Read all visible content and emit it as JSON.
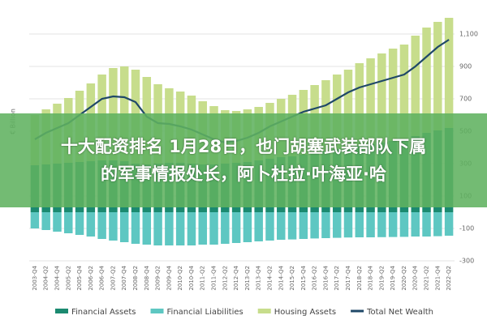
{
  "chart_data": {
    "type": "bar",
    "stacked": true,
    "ylabel": "€ Billion",
    "categories": [
      "2003-Q4",
      "2004-Q2",
      "2004-Q4",
      "2005-Q2",
      "2005-Q4",
      "2006-Q2",
      "2006-Q4",
      "2007-Q2",
      "2007-Q4",
      "2008-Q2",
      "2008-Q4",
      "2009-Q2",
      "2009-Q4",
      "2010-Q2",
      "2010-Q4",
      "2011-Q2",
      "2011-Q4",
      "2012-Q2",
      "2012-Q4",
      "2013-Q2",
      "2013-Q4",
      "2014-Q2",
      "2014-Q4",
      "2015-Q2",
      "2015-Q4",
      "2016-Q2",
      "2016-Q4",
      "2017-Q2",
      "2017-Q4",
      "2018-Q2",
      "2018-Q4",
      "2019-Q2",
      "2019-Q4",
      "2020-Q2",
      "2020-Q4",
      "2021-Q2",
      "2021-Q4",
      "2022-Q2"
    ],
    "series": [
      {
        "name": "Financial Assets",
        "color": "#1b8a70",
        "values": [
          290,
          295,
          300,
          305,
          310,
          315,
          320,
          320,
          315,
          300,
          295,
          300,
          305,
          305,
          300,
          295,
          295,
          300,
          305,
          310,
          320,
          330,
          340,
          345,
          355,
          365,
          375,
          390,
          400,
          410,
          420,
          430,
          440,
          445,
          470,
          490,
          505,
          520
        ]
      },
      {
        "name": "Financial Liabilities",
        "color": "#5ec7c2",
        "values": [
          -100,
          -110,
          -120,
          -130,
          -140,
          -150,
          -165,
          -175,
          -185,
          -195,
          -200,
          -205,
          -205,
          -205,
          -205,
          -200,
          -200,
          -195,
          -190,
          -185,
          -180,
          -175,
          -170,
          -168,
          -165,
          -162,
          -160,
          -158,
          -156,
          -155,
          -155,
          -154,
          -153,
          -152,
          -150,
          -150,
          -148,
          -145
        ]
      },
      {
        "name": "Housing Assets",
        "color": "#c7dd8c",
        "values": [
          310,
          340,
          370,
          400,
          440,
          480,
          530,
          570,
          585,
          580,
          540,
          490,
          460,
          440,
          420,
          390,
          360,
          330,
          320,
          325,
          330,
          345,
          360,
          380,
          400,
          420,
          440,
          460,
          480,
          510,
          530,
          550,
          570,
          590,
          620,
          650,
          670,
          680
        ]
      },
      {
        "name": "Total Net Wealth",
        "color": "#1f4868",
        "type": "line",
        "values": [
          450,
          490,
          520,
          550,
          600,
          650,
          700,
          715,
          710,
          680,
          590,
          550,
          545,
          530,
          510,
          480,
          450,
          430,
          440,
          460,
          490,
          530,
          560,
          590,
          620,
          640,
          660,
          700,
          740,
          770,
          790,
          810,
          830,
          850,
          900,
          960,
          1020,
          1065
        ]
      }
    ],
    "ylim": [
      -300,
      1200
    ],
    "yticks": [
      -300,
      -100,
      100,
      300,
      500,
      700,
      900,
      {
        "value": 1100,
        "label": "1,100"
      }
    ],
    "grid": true
  },
  "overlay_text": [
    "十大配资排名 1月28日，也门胡塞武装部队下属",
    "的军事情报处长，阿卜杜拉·叶海亚·哈"
  ]
}
